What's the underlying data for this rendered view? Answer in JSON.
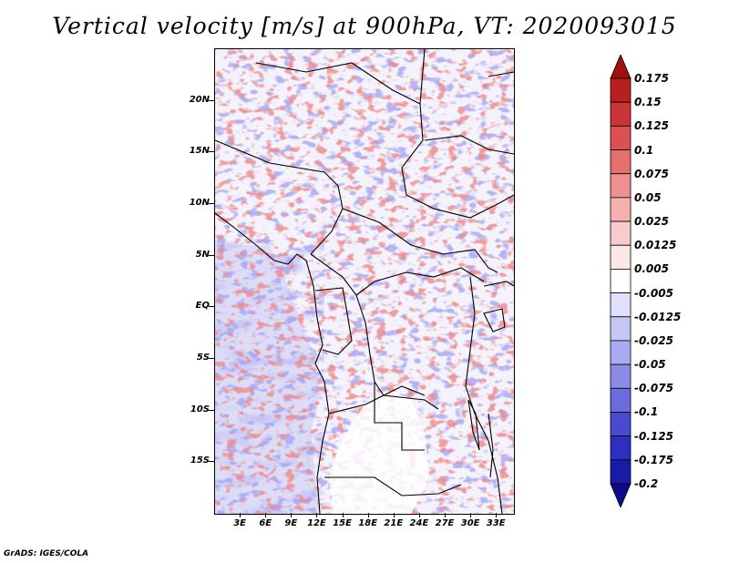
{
  "title": "Vertical velocity [m/s] at 900hPa, VT: 2020093015",
  "footer": "GrADS: IGES/COLA",
  "map": {
    "x_ticks": [
      "3E",
      "6E",
      "9E",
      "12E",
      "15E",
      "18E",
      "21E",
      "24E",
      "27E",
      "30E",
      "33E"
    ],
    "x_tick_lon": [
      3,
      6,
      9,
      12,
      15,
      18,
      21,
      24,
      27,
      30,
      33
    ],
    "y_ticks": [
      "20N",
      "15N",
      "10N",
      "5N",
      "EQ",
      "5S",
      "10S",
      "15S"
    ],
    "y_tick_lat": [
      20,
      15,
      10,
      5,
      0,
      -5,
      -10,
      -15
    ],
    "lon_range": [
      0,
      35
    ],
    "lat_range": [
      -20,
      25
    ]
  },
  "colorbar": {
    "labels": [
      "0.175",
      "0.15",
      "0.125",
      "0.1",
      "0.075",
      "0.05",
      "0.025",
      "0.0125",
      "0.005",
      "-0.005",
      "-0.0125",
      "-0.025",
      "-0.05",
      "-0.075",
      "-0.1",
      "-0.125",
      "-0.175",
      "-0.2"
    ],
    "colors": [
      "#a01010",
      "#b82020",
      "#cc3535",
      "#dd5050",
      "#e57070",
      "#ee9090",
      "#f5b0b0",
      "#f9cccc",
      "#fce6e6",
      "#ffffff",
      "#e0e0fa",
      "#c6c6f5",
      "#aaaaf0",
      "#8c8ce8",
      "#6c6cdc",
      "#4a4ad0",
      "#2e2ec0",
      "#1a1aa8",
      "#0c0c88"
    ]
  }
}
